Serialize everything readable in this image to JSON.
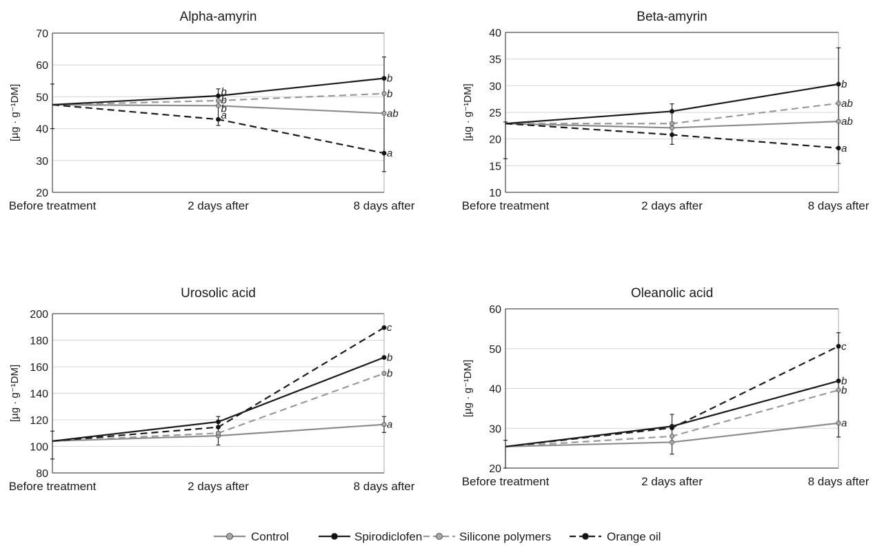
{
  "chart_data": [
    {
      "type": "line",
      "title": "Alpha-amyrin",
      "ylabel": "[µg · g⁻¹DM]",
      "categories": [
        "Before treatment",
        "2 days after",
        "8 days after"
      ],
      "ylim": [
        20,
        70
      ],
      "yticks": [
        20,
        30,
        40,
        50,
        60,
        70
      ],
      "grid": true,
      "series": [
        {
          "name": "Control",
          "values": [
            47.5,
            47.2,
            44.8
          ],
          "letters": [
            "",
            "b",
            "ab"
          ]
        },
        {
          "name": "Spirodiclofen",
          "values": [
            47.5,
            50.3,
            55.8
          ],
          "letters": [
            "",
            "b",
            "b"
          ]
        },
        {
          "name": "Silicone polymers",
          "values": [
            47.5,
            48.8,
            51.0
          ],
          "letters": [
            "",
            "b",
            "b"
          ]
        },
        {
          "name": "Orange oil",
          "values": [
            47.5,
            42.9,
            32.3
          ],
          "letters": [
            "",
            "a",
            "a"
          ]
        }
      ],
      "error_bars": [
        {
          "category": 0,
          "low": 40.0,
          "high": 54.0
        },
        {
          "category": 1,
          "low": 41.0,
          "high": 52.5
        },
        {
          "category": 2,
          "low": 26.5,
          "high": 62.5
        }
      ]
    },
    {
      "type": "line",
      "title": "Beta-amyrin",
      "ylabel": "[µg · g⁻¹DM]",
      "categories": [
        "Before treatment",
        "2 days after",
        "8 days after"
      ],
      "ylim": [
        10,
        40
      ],
      "yticks": [
        10,
        15,
        20,
        25,
        30,
        35,
        40
      ],
      "grid": true,
      "series": [
        {
          "name": "Control",
          "values": [
            22.9,
            22.1,
            23.3
          ],
          "letters": [
            "",
            "",
            "ab"
          ]
        },
        {
          "name": "Spirodiclofen",
          "values": [
            22.9,
            25.2,
            30.3
          ],
          "letters": [
            "",
            "",
            "b"
          ]
        },
        {
          "name": "Silicone polymers",
          "values": [
            22.9,
            22.9,
            26.7
          ],
          "letters": [
            "",
            "",
            "ab"
          ]
        },
        {
          "name": "Orange oil",
          "values": [
            22.9,
            20.8,
            18.3
          ],
          "letters": [
            "",
            "",
            "a"
          ]
        }
      ],
      "error_bars": [
        {
          "category": 0,
          "low": 16.3,
          "high": 23.2
        },
        {
          "category": 1,
          "low": 19.0,
          "high": 26.6
        },
        {
          "category": 2,
          "low": 15.4,
          "high": 37.1
        }
      ]
    },
    {
      "type": "line",
      "title": "Urosolic acid",
      "ylabel": "[µg · g⁻¹DM]",
      "categories": [
        "Before treatment",
        "2 days after",
        "8 days after"
      ],
      "ylim": [
        80,
        200
      ],
      "yticks": [
        80,
        100,
        120,
        140,
        160,
        180,
        200
      ],
      "grid": true,
      "series": [
        {
          "name": "Control",
          "values": [
            104,
            108,
            116.5
          ],
          "letters": [
            "",
            "",
            "a"
          ]
        },
        {
          "name": "Spirodiclofen",
          "values": [
            104,
            118.5,
            167
          ],
          "letters": [
            "",
            "",
            "b"
          ]
        },
        {
          "name": "Silicone polymers",
          "values": [
            104,
            110,
            155
          ],
          "letters": [
            "",
            "",
            "b"
          ]
        },
        {
          "name": "Orange oil",
          "values": [
            104,
            114.5,
            189.5
          ],
          "letters": [
            "",
            "",
            "c"
          ]
        }
      ],
      "error_bars": [
        {
          "category": 0,
          "low": 90.5,
          "high": 111.5
        },
        {
          "category": 1,
          "low": 101,
          "high": 122.5
        },
        {
          "category": 2,
          "low": 110.5,
          "high": 122.5
        }
      ]
    },
    {
      "type": "line",
      "title": "Oleanolic acid",
      "ylabel": "[µg · g⁻¹DM]",
      "categories": [
        "Before treatment",
        "2 days after",
        "8 days after"
      ],
      "ylim": [
        20,
        60
      ],
      "yticks": [
        20,
        30,
        40,
        50,
        60
      ],
      "grid": true,
      "series": [
        {
          "name": "Control",
          "values": [
            25.4,
            26.5,
            31.3
          ],
          "letters": [
            "",
            "",
            "a"
          ]
        },
        {
          "name": "Spirodiclofen",
          "values": [
            25.4,
            30.5,
            41.9
          ],
          "letters": [
            "",
            "",
            "b"
          ]
        },
        {
          "name": "Silicone polymers",
          "values": [
            25.4,
            28.0,
            39.6
          ],
          "letters": [
            "",
            "",
            "b"
          ]
        },
        {
          "name": "Orange oil",
          "values": [
            25.4,
            30.1,
            50.6
          ],
          "letters": [
            "",
            "",
            "c"
          ]
        }
      ],
      "error_bars": [
        {
          "category": 0,
          "low": 20.0,
          "high": 27.0
        },
        {
          "category": 1,
          "low": 23.5,
          "high": 33.5
        },
        {
          "category": 2,
          "low": 27.8,
          "high": 54.0
        }
      ]
    }
  ],
  "legend": {
    "placement": "bottom-center",
    "entries": [
      "Control",
      "Spirodiclofen",
      "Silicone polymers",
      "Orange oil"
    ]
  },
  "styles": {
    "Control": {
      "color": "#8c8c8c",
      "dashed": false,
      "marker": "#a8a8a8"
    },
    "Spirodiclofen": {
      "color": "#1a1a1a",
      "dashed": false,
      "marker": "#111111"
    },
    "Silicone polymers": {
      "color": "#999999",
      "dashed": true,
      "marker": "#a8a8a8"
    },
    "Orange oil": {
      "color": "#1a1a1a",
      "dashed": true,
      "marker": "#111111"
    }
  }
}
